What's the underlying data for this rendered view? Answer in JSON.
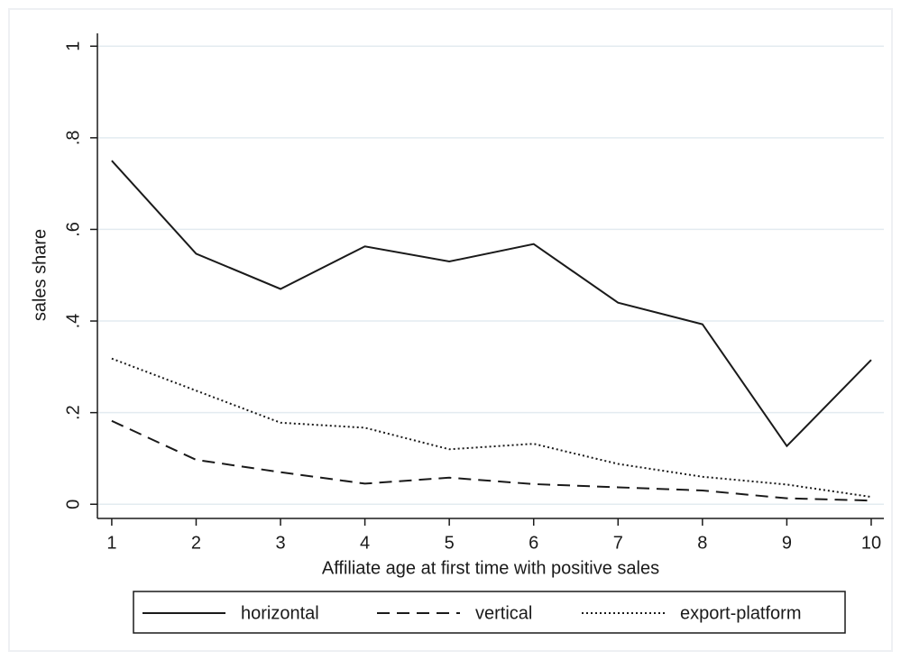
{
  "chart_data": {
    "type": "line",
    "xlabel": "Affiliate age at first time with positive sales",
    "ylabel": "sales share",
    "x": [
      1,
      2,
      3,
      4,
      5,
      6,
      7,
      8,
      9,
      10
    ],
    "series": [
      {
        "name": "horizontal",
        "color": "#1a1a1a",
        "dash": "solid",
        "values": [
          0.75,
          0.547,
          0.47,
          0.563,
          0.53,
          0.568,
          0.44,
          0.393,
          0.127,
          0.315
        ]
      },
      {
        "name": "vertical",
        "color": "#1a1a1a",
        "dash": "dashed",
        "values": [
          0.182,
          0.097,
          0.07,
          0.045,
          0.058,
          0.044,
          0.037,
          0.03,
          0.013,
          0.008
        ]
      },
      {
        "name": "export-platform",
        "color": "#1a1a1a",
        "dash": "dotted",
        "values": [
          0.318,
          0.248,
          0.178,
          0.167,
          0.12,
          0.132,
          0.088,
          0.06,
          0.043,
          0.016
        ]
      }
    ],
    "xlim": [
      0.83,
      10.15
    ],
    "xticks": [
      1,
      2,
      3,
      4,
      5,
      6,
      7,
      8,
      9,
      10
    ],
    "ylim": [
      -0.031,
      1.028
    ],
    "yticks": [
      0,
      {
        "value": 0.2,
        "label": ".2"
      },
      {
        "value": 0.4,
        "label": ".4"
      },
      {
        "value": 0.6,
        "label": ".6"
      },
      {
        "value": 0.8,
        "label": ".8"
      },
      1
    ],
    "grid": true,
    "legend": "bottom"
  }
}
